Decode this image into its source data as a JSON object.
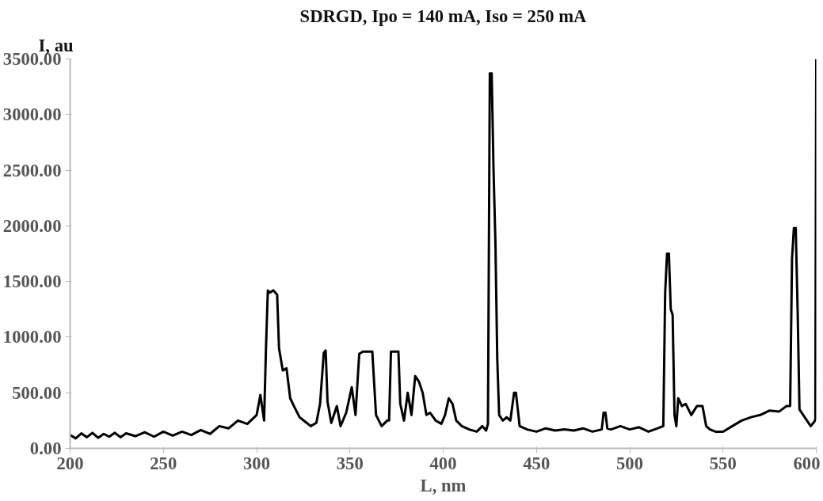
{
  "chart_data": {
    "type": "line",
    "title": "SDRGD, Ipo = 140 mA, Iso = 250 mA",
    "xlabel": "L, nm",
    "ylabel": "I, au",
    "x": [
      200,
      203,
      206,
      209,
      212,
      215,
      218,
      221,
      224,
      227,
      230,
      235,
      240,
      245,
      250,
      255,
      260,
      265,
      270,
      275,
      280,
      285,
      290,
      295,
      300,
      302,
      304,
      305,
      306,
      307,
      309,
      311,
      312,
      314,
      316,
      318,
      320,
      323,
      326,
      329,
      332,
      334,
      336,
      337,
      338,
      340,
      343,
      345,
      348,
      351,
      353,
      355,
      357,
      359,
      361,
      362,
      364,
      367,
      370,
      371,
      372,
      374,
      376,
      377,
      379,
      381,
      383,
      385,
      387,
      389,
      391,
      393,
      396,
      399,
      401,
      403,
      405,
      407,
      410,
      414,
      418,
      421,
      423,
      424,
      425,
      426,
      427,
      428,
      429,
      430,
      432,
      434,
      436,
      438,
      439,
      441,
      445,
      450,
      455,
      460,
      465,
      470,
      475,
      480,
      485,
      486,
      487,
      488,
      490,
      495,
      500,
      505,
      510,
      515,
      518,
      519,
      520,
      521,
      522,
      523,
      524,
      525,
      526,
      528,
      530,
      533,
      536,
      539,
      541,
      543,
      546,
      550,
      555,
      560,
      565,
      570,
      575,
      580,
      584,
      586,
      587,
      588,
      589,
      590,
      591,
      593,
      595,
      597,
      599,
      599.5,
      600
    ],
    "series": [
      {
        "color": "#000000",
        "values": [
          120,
          90,
          135,
          100,
          140,
          95,
          130,
          105,
          140,
          100,
          135,
          110,
          145,
          105,
          150,
          115,
          150,
          120,
          165,
          130,
          200,
          180,
          250,
          220,
          300,
          480,
          250,
          900,
          1420,
          1400,
          1420,
          1380,
          900,
          700,
          720,
          450,
          380,
          280,
          240,
          200,
          230,
          400,
          860,
          880,
          420,
          230,
          380,
          200,
          320,
          550,
          300,
          850,
          870,
          870,
          870,
          870,
          300,
          200,
          250,
          250,
          870,
          870,
          870,
          400,
          250,
          500,
          300,
          650,
          600,
          500,
          300,
          320,
          250,
          220,
          300,
          450,
          400,
          250,
          200,
          170,
          150,
          200,
          160,
          220,
          3370,
          3370,
          2500,
          1850,
          800,
          300,
          250,
          280,
          250,
          500,
          500,
          200,
          170,
          150,
          180,
          160,
          170,
          160,
          180,
          150,
          170,
          320,
          320,
          180,
          170,
          200,
          170,
          190,
          150,
          180,
          200,
          1400,
          1750,
          1750,
          1250,
          1200,
          300,
          200,
          450,
          380,
          400,
          300,
          380,
          380,
          200,
          170,
          150,
          150,
          200,
          250,
          280,
          300,
          340,
          330,
          380,
          380,
          1700,
          1980,
          1980,
          1250,
          350,
          300,
          250,
          200,
          240,
          260,
          3500
        ]
      }
    ],
    "xlim": [
      200,
      600
    ],
    "ylim": [
      0,
      3500
    ],
    "xticks": [
      200,
      250,
      300,
      350,
      400,
      450,
      500,
      550,
      600
    ],
    "yticks": [
      {
        "value": 0,
        "label": "0.00"
      },
      {
        "value": 500,
        "label": "500.00"
      },
      {
        "value": 1000,
        "label": "1000.00"
      },
      {
        "value": 1500,
        "label": "1500.00"
      },
      {
        "value": 2000,
        "label": "2000.00"
      },
      {
        "value": 2500,
        "label": "2500.00"
      },
      {
        "value": 3000,
        "label": "3000.00"
      },
      {
        "value": 3500,
        "label": "3500.00"
      }
    ],
    "grid": false,
    "marker": "none",
    "line_style": "solid"
  }
}
